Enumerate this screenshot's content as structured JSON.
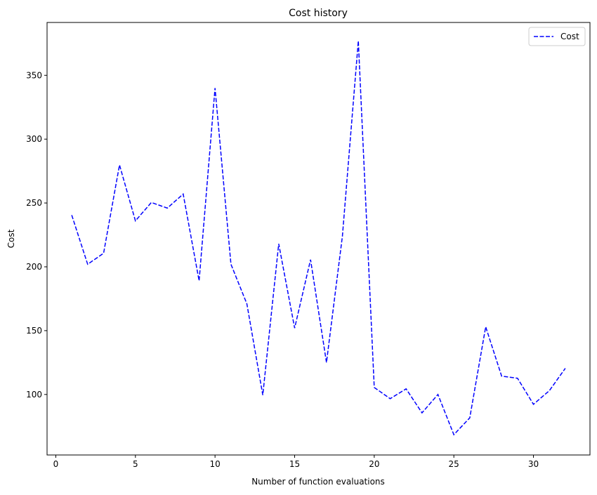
{
  "chart_data": {
    "type": "line",
    "title": "Cost history",
    "x_label": "Number of function evaluations",
    "y_label": "Cost",
    "x": [
      1,
      2,
      3,
      4,
      5,
      6,
      7,
      8,
      9,
      10,
      11,
      12,
      13,
      14,
      15,
      16,
      17,
      18,
      19,
      20,
      21,
      22,
      23,
      24,
      25,
      26,
      27,
      28,
      29,
      30,
      31,
      32
    ],
    "series": [
      {
        "name": "Cost",
        "color": "#0000ff",
        "style": "dashed",
        "values": [
          240.5,
          202,
          210.6,
          279.8,
          236,
          250.4,
          246,
          257,
          189,
          340,
          202,
          171,
          99.5,
          218,
          152,
          205.6,
          125,
          224,
          377,
          105.5,
          96.7,
          104.4,
          85.6,
          100,
          68.5,
          81.7,
          153,
          114.4,
          112.7,
          92.3,
          103,
          120.5
        ]
      }
    ],
    "xlim": [
      -0.55,
      33.55
    ],
    "ylim": [
      52.6,
      391.4
    ],
    "xticks": [
      0,
      5,
      10,
      15,
      20,
      25,
      30
    ],
    "yticks": [
      100,
      150,
      200,
      250,
      300,
      350
    ],
    "legend": "upper right"
  }
}
